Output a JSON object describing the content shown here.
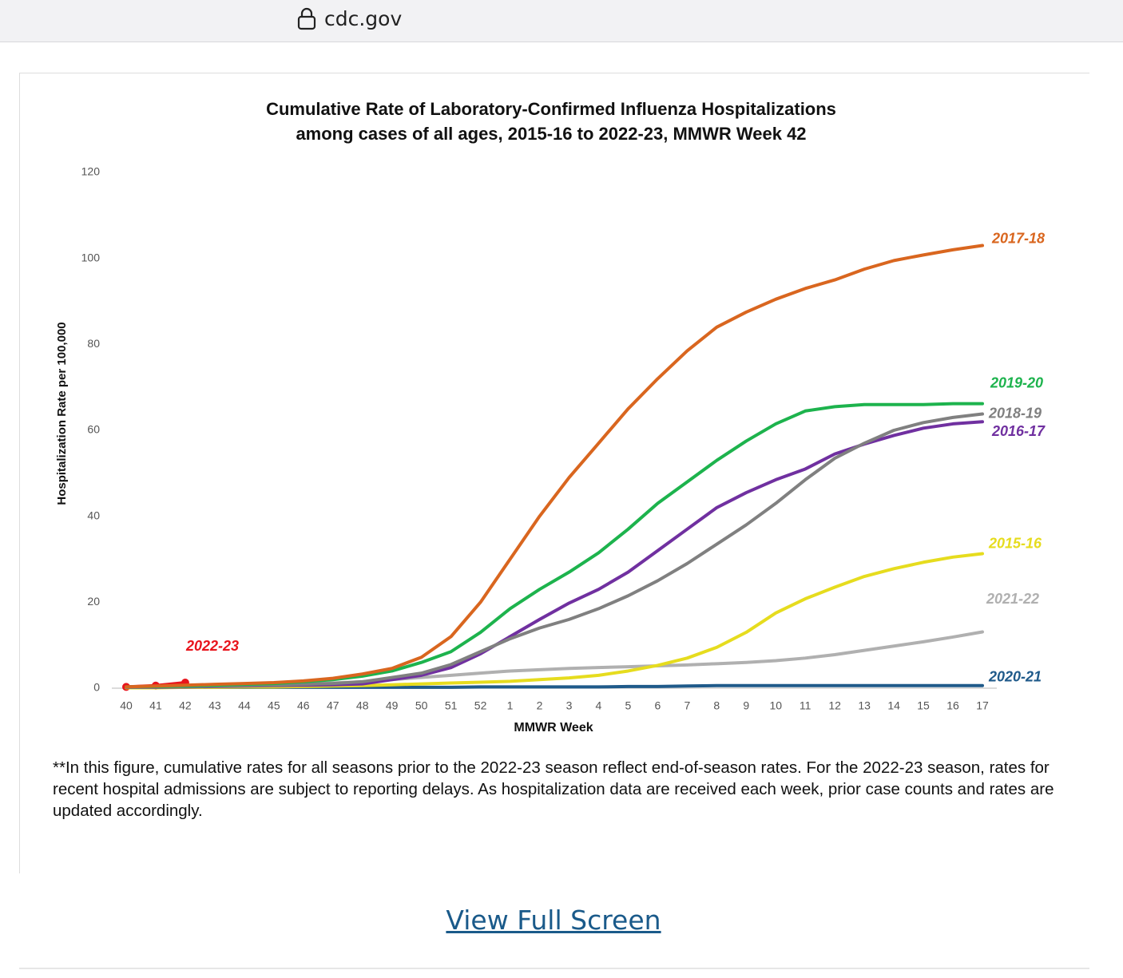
{
  "browser": {
    "url": "cdc.gov"
  },
  "chart_data": {
    "type": "line",
    "title": [
      "Cumulative Rate of Laboratory-Confirmed Influenza Hospitalizations",
      "among cases of all ages, 2015-16 to 2022-23, MMWR  Week 42"
    ],
    "x_label": "MMWR Week",
    "y_label": "Hospitalization Rate per 100,000",
    "categories": [
      "40",
      "41",
      "42",
      "43",
      "44",
      "45",
      "46",
      "47",
      "48",
      "49",
      "50",
      "51",
      "52",
      "1",
      "2",
      "3",
      "4",
      "5",
      "6",
      "7",
      "8",
      "9",
      "10",
      "11",
      "12",
      "13",
      "14",
      "15",
      "16",
      "17"
    ],
    "ylim": [
      0,
      120
    ],
    "yticks": [
      0,
      20,
      40,
      60,
      80,
      100,
      120
    ],
    "grid": false,
    "series": [
      {
        "name": "2017-18",
        "color": "#d9661f",
        "values": [
          0.3,
          0.5,
          0.7,
          0.9,
          1.1,
          1.3,
          1.7,
          2.3,
          3.3,
          4.6,
          7.2,
          12,
          20,
          30,
          40,
          49,
          57,
          65,
          72,
          78.5,
          84,
          87.5,
          90.5,
          93,
          95,
          97.5,
          99.5,
          100.8,
          102,
          103
        ]
      },
      {
        "name": "2019-20",
        "color": "#1db34d",
        "values": [
          0.3,
          0.4,
          0.5,
          0.7,
          0.9,
          1.1,
          1.5,
          2,
          2.8,
          4,
          6,
          8.5,
          13,
          18.5,
          23,
          27,
          31.5,
          37,
          43,
          48,
          53,
          57.5,
          61.5,
          64.5,
          65.5,
          66,
          66,
          66,
          66.2,
          66.2
        ]
      },
      {
        "name": "2018-19",
        "color": "#808080",
        "values": [
          0.2,
          0.3,
          0.4,
          0.5,
          0.6,
          0.7,
          0.9,
          1.1,
          1.5,
          2.5,
          3.5,
          5.5,
          8.5,
          11.5,
          14,
          16,
          18.5,
          21.5,
          25,
          29,
          33.5,
          38,
          43,
          48.5,
          53.5,
          57,
          60,
          61.8,
          63,
          63.8
        ]
      },
      {
        "name": "2016-17",
        "color": "#7030a0",
        "values": [
          0.2,
          0.2,
          0.3,
          0.4,
          0.5,
          0.6,
          0.7,
          0.8,
          1,
          2,
          3,
          4.8,
          8,
          12,
          16,
          19.8,
          23,
          27,
          32,
          37,
          42,
          45.5,
          48.5,
          51,
          54.5,
          56.8,
          58.8,
          60.5,
          61.5,
          62
        ]
      },
      {
        "name": "2015-16",
        "color": "#e6dc1e",
        "values": [
          0.1,
          0.1,
          0.2,
          0.2,
          0.3,
          0.3,
          0.4,
          0.5,
          0.6,
          0.8,
          1,
          1.2,
          1.4,
          1.6,
          2,
          2.4,
          3,
          4,
          5.3,
          7,
          9.5,
          13,
          17.5,
          20.8,
          23.5,
          26,
          27.8,
          29.3,
          30.5,
          31.3
        ]
      },
      {
        "name": "2021-22",
        "color": "#b0b0b0",
        "values": [
          0.2,
          0.3,
          0.4,
          0.5,
          0.6,
          0.8,
          1,
          1.2,
          1.5,
          2,
          2.5,
          3,
          3.5,
          4,
          4.3,
          4.6,
          4.8,
          5,
          5.2,
          5.4,
          5.7,
          6,
          6.4,
          7,
          7.8,
          8.8,
          9.8,
          10.8,
          11.9,
          13.1
        ]
      },
      {
        "name": "2020-21",
        "color": "#1f5a8a",
        "values": [
          0.2,
          0.2,
          0.2,
          0.2,
          0.2,
          0.2,
          0.2,
          0.2,
          0.2,
          0.2,
          0.2,
          0.2,
          0.3,
          0.3,
          0.3,
          0.3,
          0.3,
          0.4,
          0.4,
          0.5,
          0.6,
          0.6,
          0.6,
          0.6,
          0.6,
          0.6,
          0.6,
          0.6,
          0.6,
          0.6
        ]
      },
      {
        "name": "2022-23",
        "color": "#e8141c",
        "marker": "circle",
        "values": [
          0.3,
          0.6,
          1.3,
          null,
          null,
          null,
          null,
          null,
          null,
          null,
          null,
          null,
          null,
          null,
          null,
          null,
          null,
          null,
          null,
          null,
          null,
          null,
          null,
          null,
          null,
          null,
          null,
          null,
          null,
          null
        ]
      }
    ]
  },
  "footnote": "**In this figure, cumulative rates for all seasons prior to the 2022-23 season reflect end-of-season rates. For the 2022-23 season, rates for recent hospital admissions are subject to reporting delays. As hospitalization data are received each week, prior case counts and rates are updated accordingly.",
  "link": "View Full Screen"
}
